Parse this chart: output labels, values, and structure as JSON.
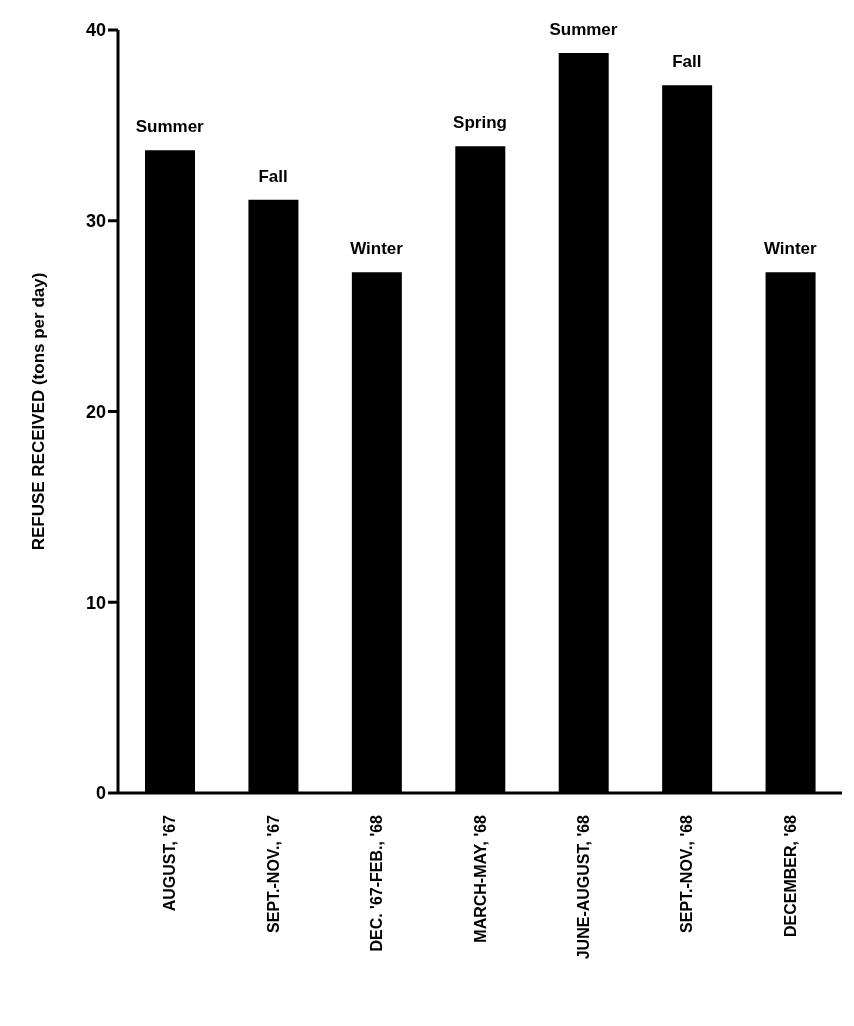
{
  "chart_data": {
    "type": "bar",
    "ylabel": "REFUSE RECEIVED (tons per day)",
    "categories": [
      "AUGUST, '67",
      "SEPT.-NOV., '67",
      "DEC. '67-FEB., '68",
      "MARCH-MAY, '68",
      "JUNE-AUGUST, '68",
      "SEPT.-NOV., '68",
      "DECEMBER, '68"
    ],
    "values": [
      33.7,
      31.1,
      27.3,
      33.9,
      38.8,
      37.1,
      27.3
    ],
    "color": "#000000",
    "ylim": [
      0,
      40
    ],
    "yticks": [
      0,
      10,
      20,
      30,
      40
    ],
    "grid": false,
    "annotations": [
      {
        "text": "Summer",
        "x": "AUGUST, '67",
        "y": 33.7
      },
      {
        "text": "Fall",
        "x": "SEPT.-NOV., '67",
        "y": 31.1
      },
      {
        "text": "Winter",
        "x": "DEC. '67-FEB., '68",
        "y": 27.3
      },
      {
        "text": "Spring",
        "x": "MARCH-MAY, '68",
        "y": 33.9
      },
      {
        "text": "Summer",
        "x": "JUNE-AUGUST, '68",
        "y": 38.8
      },
      {
        "text": "Fall",
        "x": "SEPT.-NOV., '68",
        "y": 37.1
      },
      {
        "text": "Winter",
        "x": "DECEMBER, '68",
        "y": 27.3
      }
    ]
  }
}
